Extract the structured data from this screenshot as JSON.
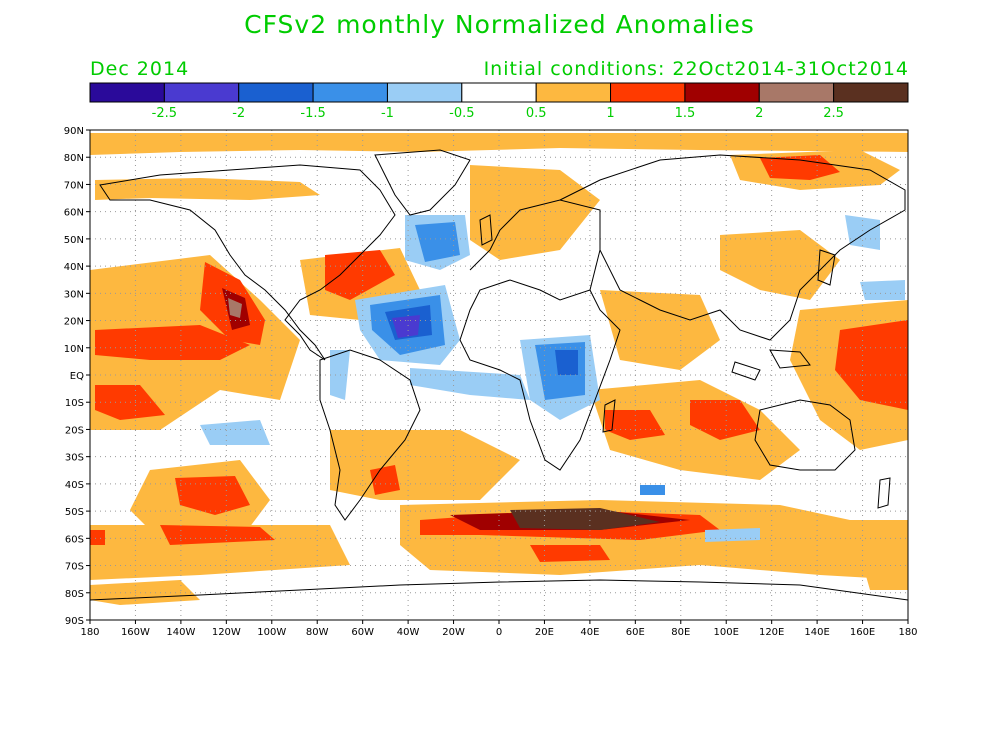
{
  "title": "CFSv2 monthly Normalized Anomalies",
  "month": "Dec 2014",
  "initial_conditions": "Initial conditions: 22Oct2014-31Oct2014",
  "colorbar": {
    "colors": [
      "#2a0a9a",
      "#4a3ad0",
      "#1a60d0",
      "#3a90e8",
      "#9acdf5",
      "#ffffff",
      "#fdb840",
      "#ff3a00",
      "#a00000",
      "#a87868",
      "#5a3020"
    ],
    "labels": [
      "-2.5",
      "-2",
      "-1.5",
      "-1",
      "-0.5",
      "0.5",
      "1",
      "1.5",
      "2",
      "2.5"
    ]
  },
  "lat_labels": [
    "90N",
    "80N",
    "70N",
    "60N",
    "50N",
    "40N",
    "30N",
    "20N",
    "10N",
    "EQ",
    "10S",
    "20S",
    "30S",
    "40S",
    "50S",
    "60S",
    "70S",
    "80S",
    "90S"
  ],
  "lon_labels": [
    "180",
    "160W",
    "140W",
    "120W",
    "100W",
    "80W",
    "60W",
    "40W",
    "20W",
    "0",
    "20E",
    "40E",
    "60E",
    "80E",
    "100E",
    "120E",
    "140E",
    "160E",
    "180"
  ]
}
